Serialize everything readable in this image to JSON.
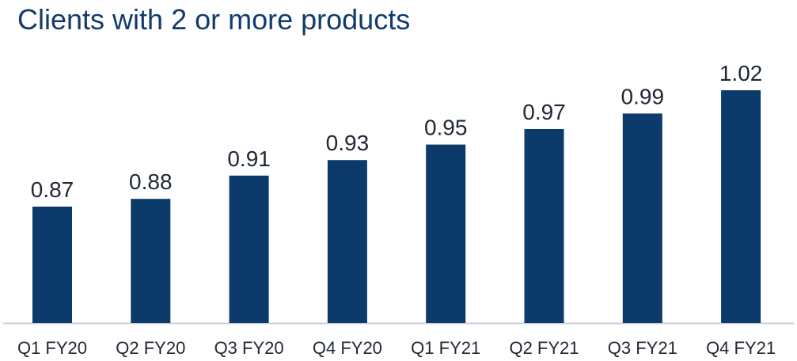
{
  "colors": {
    "bar": "#0c3a6b",
    "baseline": "#c9ced6",
    "title": "#123b6d"
  },
  "chart_data": {
    "type": "bar",
    "title": "Clients with 2 or more products",
    "xlabel": "",
    "ylabel": "",
    "categories": [
      "Q1 FY20",
      "Q2 FY20",
      "Q3 FY20",
      "Q4 FY20",
      "Q1 FY21",
      "Q2 FY21",
      "Q3 FY21",
      "Q4 FY21"
    ],
    "values": [
      0.87,
      0.88,
      0.91,
      0.93,
      0.95,
      0.97,
      0.99,
      1.02
    ],
    "value_labels": [
      "0.87",
      "0.88",
      "0.91",
      "0.93",
      "0.95",
      "0.97",
      "0.99",
      "1.02"
    ],
    "ylim": [
      0.72,
      1.02
    ],
    "grid": false,
    "legend": "none"
  }
}
